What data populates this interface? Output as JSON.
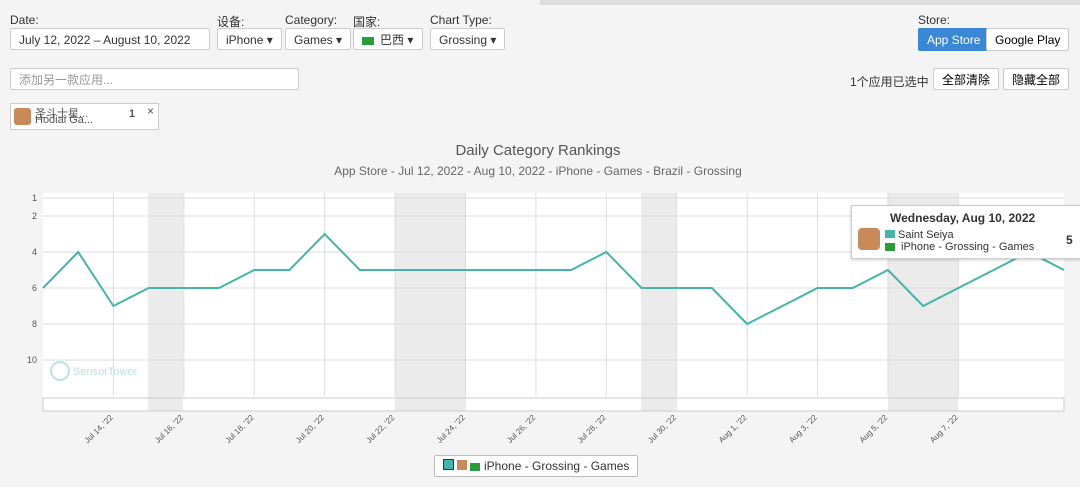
{
  "filters": {
    "date_label": "Date:",
    "date_value": "July 12, 2022 – August 10, 2022",
    "device_label": "设备:",
    "device_value": "iPhone",
    "category_label": "Category:",
    "category_value": "Games",
    "country_label": "国家:",
    "country_value": "巴西",
    "chart_type_label": "Chart Type:",
    "chart_type_value": "Grossing",
    "store_label": "Store:",
    "stores": [
      "App Store",
      "Google Play"
    ]
  },
  "search_placeholder": "添加另一款应用...",
  "selection": {
    "status": "1个应用已选中",
    "clear_all": "全部清除",
    "hide_all": "隐藏全部"
  },
  "app_chip": {
    "name": "圣斗士星...",
    "publisher": "Hodiai Ga...",
    "count": 1
  },
  "tooltip": {
    "date": "Wednesday, Aug 10, 2022",
    "app": "Saint Seiya"
  },
  "watermark": "SensorTower",
  "chart_data": {
    "type": "line",
    "title": "Daily Category Rankings",
    "subtitle": "App Store - Jul 12, 2022 - Aug 10, 2022 - iPhone - Games - Brazil - Grossing",
    "categories": [
      null,
      null,
      "Jul 14, '22",
      null,
      "Jul 16, '22",
      null,
      "Jul 18, '22",
      null,
      "Jul 20, '22",
      null,
      "Jul 22, '22",
      null,
      "Jul 24, '22",
      null,
      "Jul 26, '22",
      null,
      "Jul 28, '22",
      null,
      "Jul 30, '22",
      null,
      "Aug 1, '22",
      null,
      "Aug 3, '22",
      null,
      "Aug 5, '22",
      null,
      "Aug 7, '22",
      null,
      null,
      null
    ],
    "series": [
      {
        "name": "iPhone - Grossing - Games",
        "color": "#45b5aa",
        "values": [
          6,
          4,
          7,
          6,
          6,
          6,
          5,
          5,
          3,
          5,
          5,
          5,
          5,
          5,
          5,
          5,
          4,
          6,
          6,
          6,
          8,
          7,
          6,
          6,
          5,
          7,
          6,
          5,
          4,
          5
        ]
      }
    ],
    "ylim": [
      1,
      12
    ],
    "y_inverted": true,
    "yticks": [
      1,
      2,
      4,
      6,
      8,
      10
    ],
    "grid": true
  }
}
